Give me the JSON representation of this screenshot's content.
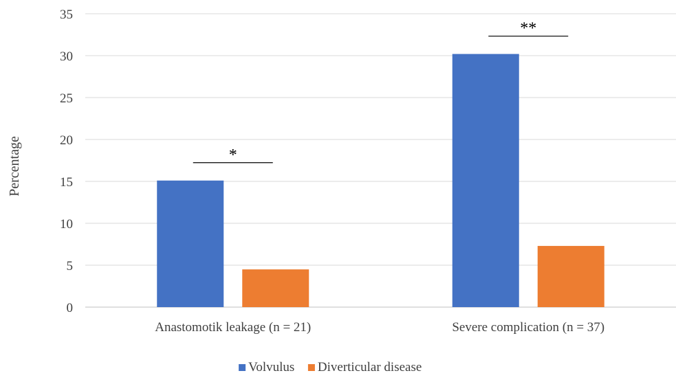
{
  "chart_data": {
    "type": "bar",
    "categories": [
      "Anastomotik leakage (n = 21)",
      "Severe complication (n = 37)"
    ],
    "series": [
      {
        "name": "Volvulus",
        "values": [
          15.1,
          30.2
        ],
        "color": "#4472C4"
      },
      {
        "name": "Diverticular disease",
        "values": [
          4.5,
          7.3
        ],
        "color": "#ED7D31"
      }
    ],
    "xlabel": "",
    "ylabel": "Percentage",
    "ylim": [
      0,
      35
    ],
    "yticks": [
      0,
      5,
      10,
      15,
      20,
      25,
      30,
      35
    ],
    "grid": true,
    "legend_position": "bottom",
    "annotations": [
      {
        "category_index": 0,
        "text": "*"
      },
      {
        "category_index": 1,
        "text": "**"
      }
    ]
  }
}
